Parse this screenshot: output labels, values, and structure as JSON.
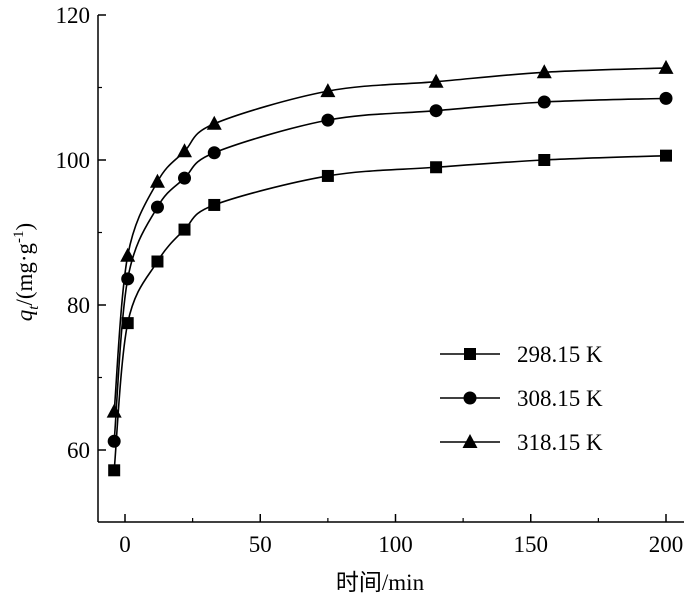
{
  "chart_data": {
    "type": "line",
    "title": "",
    "xlabel": "时间/min",
    "ylabel_main": "q",
    "ylabel_sub": "t",
    "ylabel_rest": "/(mg·g",
    "ylabel_sup": "-1",
    "ylabel_close": ")",
    "xlim": [
      -10,
      200
    ],
    "ylim": [
      50,
      120
    ],
    "xticks": [
      0,
      50,
      100,
      150,
      200
    ],
    "yticks": [
      60,
      80,
      100,
      120
    ],
    "xtick_labels": [
      "0",
      "50",
      "100",
      "150",
      "200"
    ],
    "ytick_labels": [
      "60",
      "80",
      "100",
      "120"
    ],
    "grid": false,
    "legend_position": "right-middle",
    "x": [
      -4,
      1,
      12,
      22,
      33,
      75,
      115,
      155,
      200
    ],
    "series": [
      {
        "name": "298.15 K",
        "marker": "square",
        "values": [
          57.2,
          77.5,
          86,
          90.4,
          93.8,
          97.8,
          99,
          100,
          100.6
        ]
      },
      {
        "name": "308.15 K",
        "marker": "circle",
        "values": [
          61.2,
          83.6,
          93.5,
          97.5,
          101,
          105.5,
          106.8,
          108,
          108.5
        ]
      },
      {
        "name": "318.15 K",
        "marker": "triangle",
        "values": [
          65.3,
          86.8,
          97,
          101.2,
          105,
          109.5,
          110.8,
          112.1,
          112.7
        ]
      }
    ]
  }
}
